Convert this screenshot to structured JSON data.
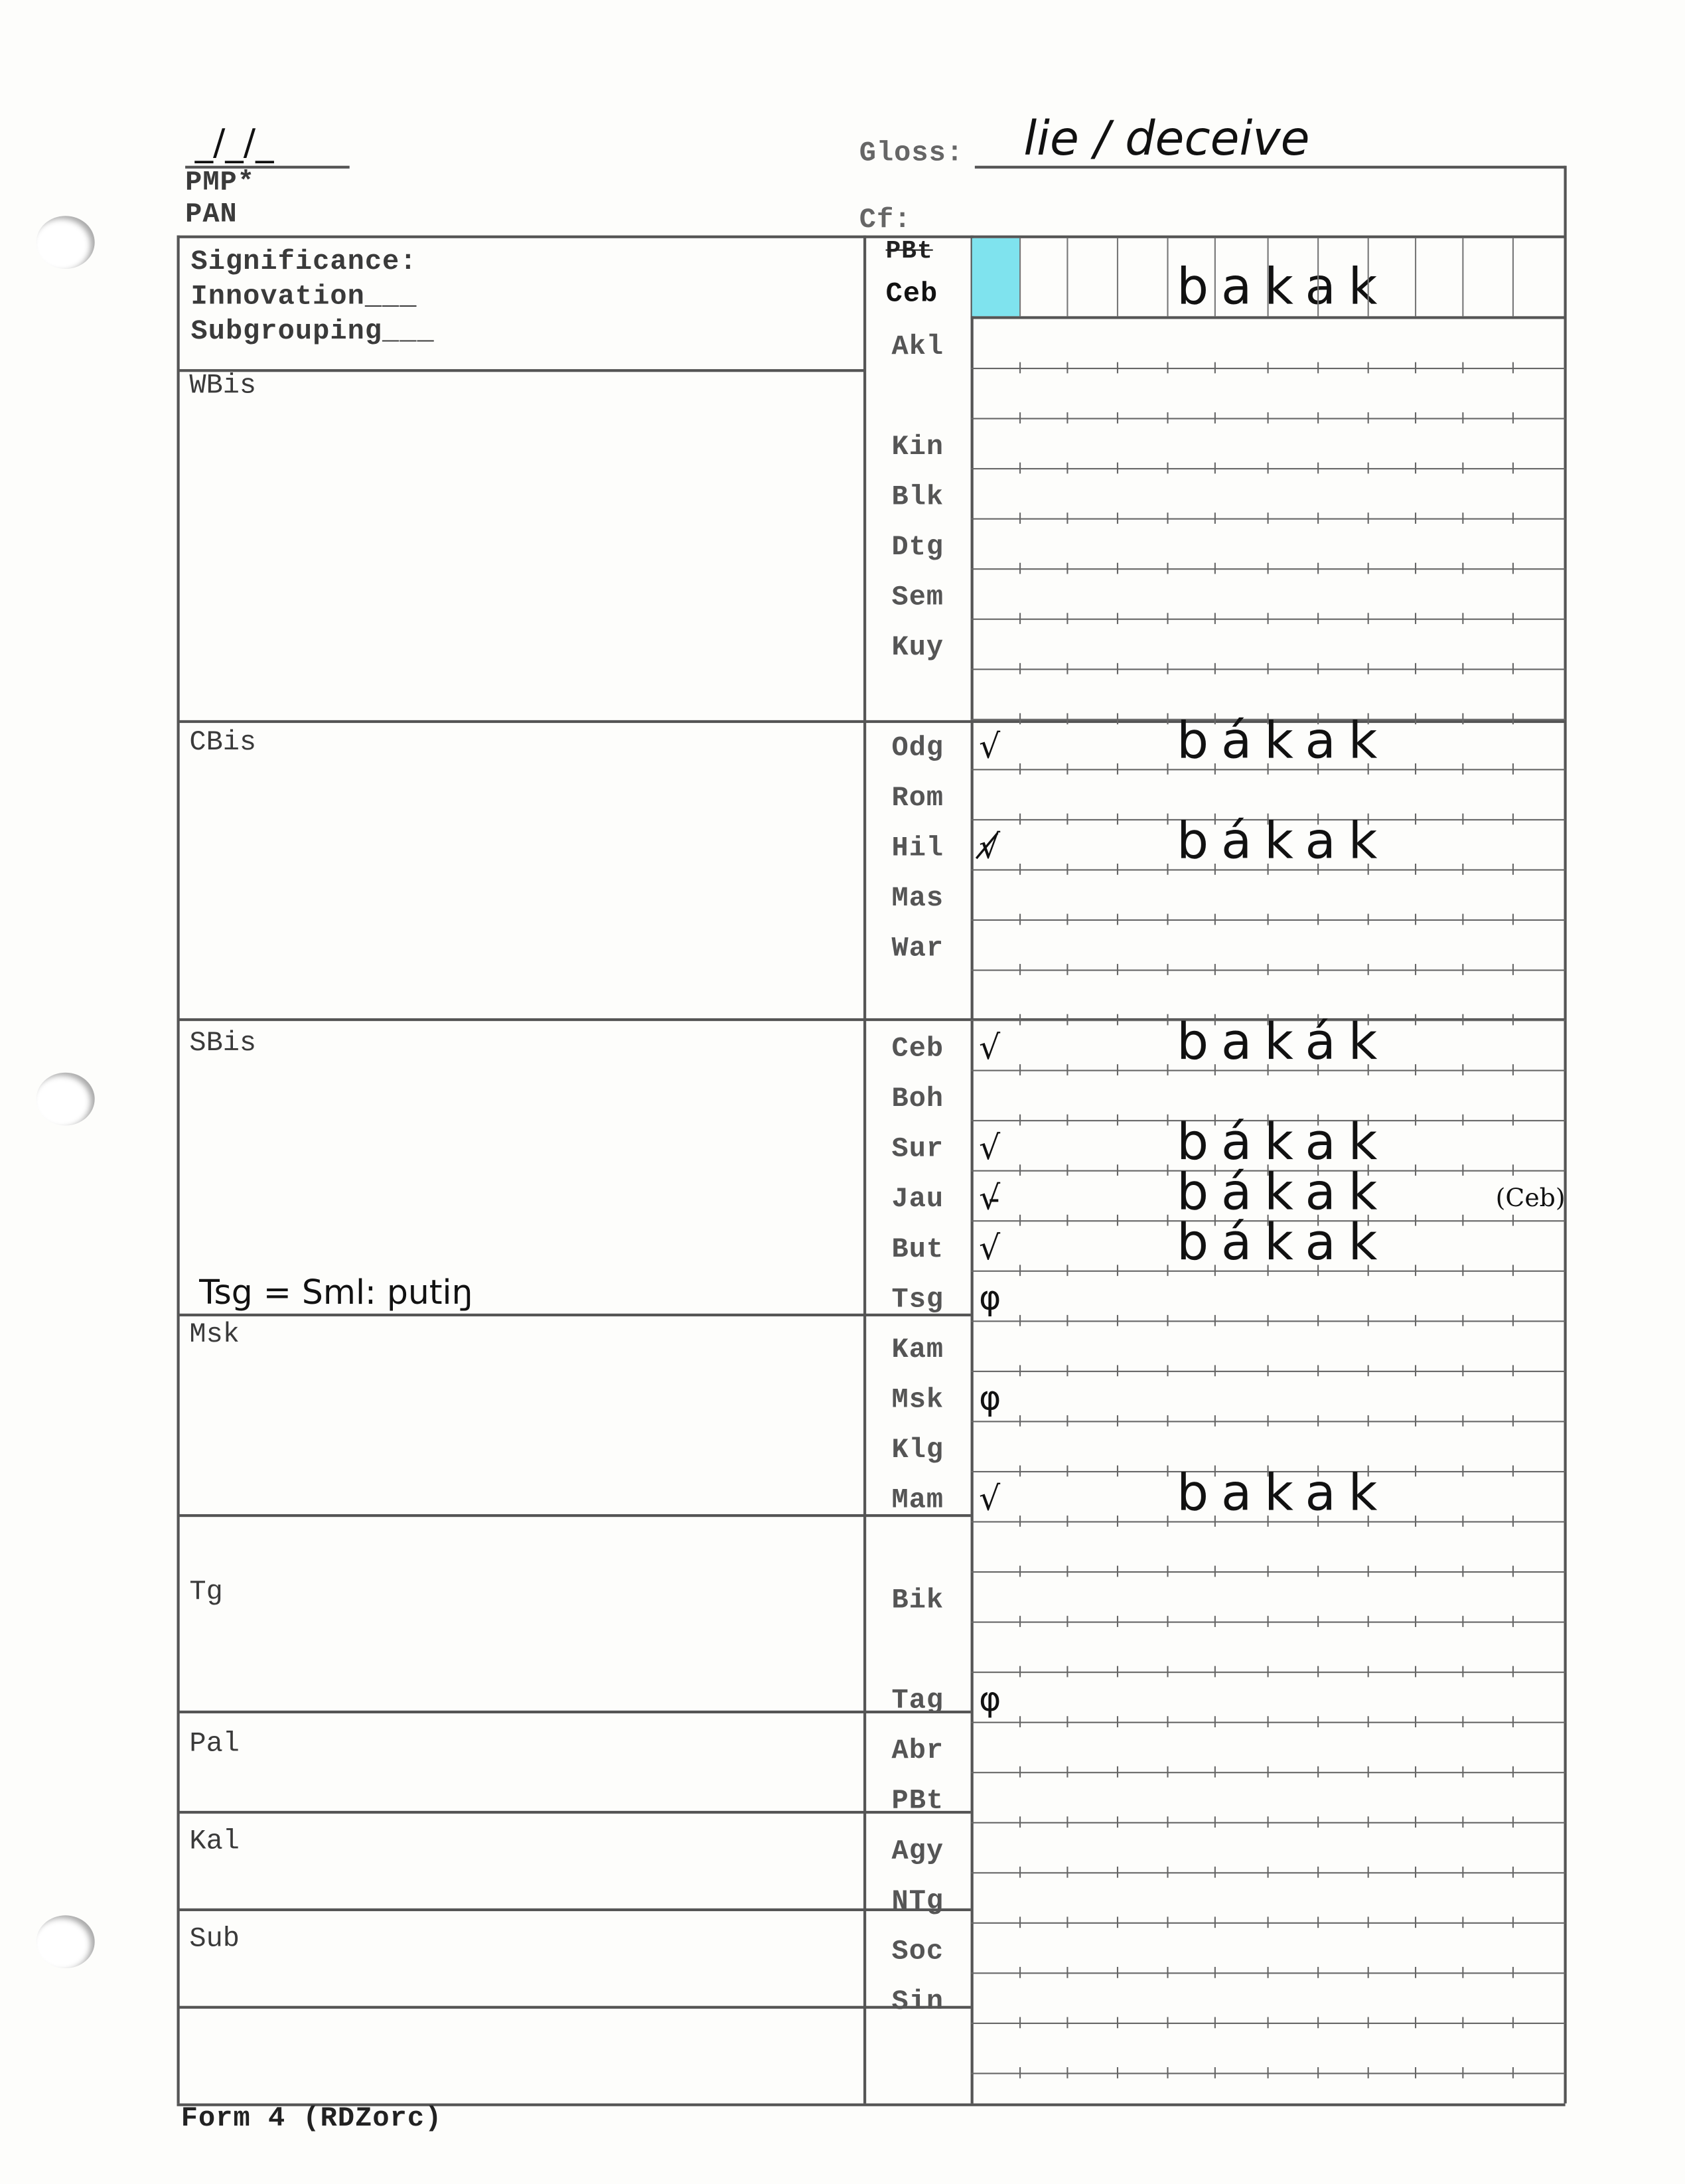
{
  "header": {
    "date": "_/_/_",
    "pmp": "PMP*",
    "pan": "PAN",
    "gloss_label": "Gloss:",
    "gloss_value": "lie / deceive",
    "cf_label": "Cf:",
    "cf_value": ""
  },
  "significance": {
    "title": "Significance:",
    "innovation": "Innovation___",
    "subgrouping": "Subgrouping___"
  },
  "sections": [
    "WBis",
    "CBis",
    "SBis",
    "Msk",
    "Tg",
    "Pal",
    "Kal",
    "Sub"
  ],
  "handwritten_note": "Tsg = Sml: putiŋ",
  "top_row": {
    "struck_label": "PBt",
    "label": "Ceb",
    "word": "bakak",
    "highlight_color": "#7fe3ee"
  },
  "rows": [
    {
      "label": "Akl"
    },
    {
      "label": ""
    },
    {
      "label": "Kin"
    },
    {
      "label": "Blk"
    },
    {
      "label": "Dtg"
    },
    {
      "label": "Sem"
    },
    {
      "label": "Kuy"
    },
    {
      "label": ""
    },
    {
      "label": "Odg",
      "mark": "√",
      "word": "bákak"
    },
    {
      "label": "Rom"
    },
    {
      "label": "Hil",
      "mark": "√̸",
      "word": "bákak"
    },
    {
      "label": "Mas"
    },
    {
      "label": "War"
    },
    {
      "label": ""
    },
    {
      "label": "Ceb",
      "mark": "√",
      "word": "bakák"
    },
    {
      "label": "Boh"
    },
    {
      "label": "Sur",
      "mark": "√",
      "word": "bákak"
    },
    {
      "label": "Jau",
      "mark": "√̵",
      "word": "bákak",
      "note": "(Ceb)"
    },
    {
      "label": "But",
      "mark": "√",
      "word": "bákak"
    },
    {
      "label": "Tsg",
      "mark": "φ"
    },
    {
      "label": "Kam"
    },
    {
      "label": "Msk",
      "mark": "φ"
    },
    {
      "label": "Klg"
    },
    {
      "label": "Mam",
      "mark": "√",
      "word": "bakak"
    },
    {
      "label": ""
    },
    {
      "label": "Bik"
    },
    {
      "label": ""
    },
    {
      "label": "Tag",
      "mark": "φ"
    },
    {
      "label": "Abr"
    },
    {
      "label": "PBt"
    },
    {
      "label": "Agy"
    },
    {
      "label": "NTg"
    },
    {
      "label": "Soc"
    },
    {
      "label": "Sin"
    },
    {
      "label": ""
    }
  ],
  "footer": "Form 4 (RDZorc)"
}
